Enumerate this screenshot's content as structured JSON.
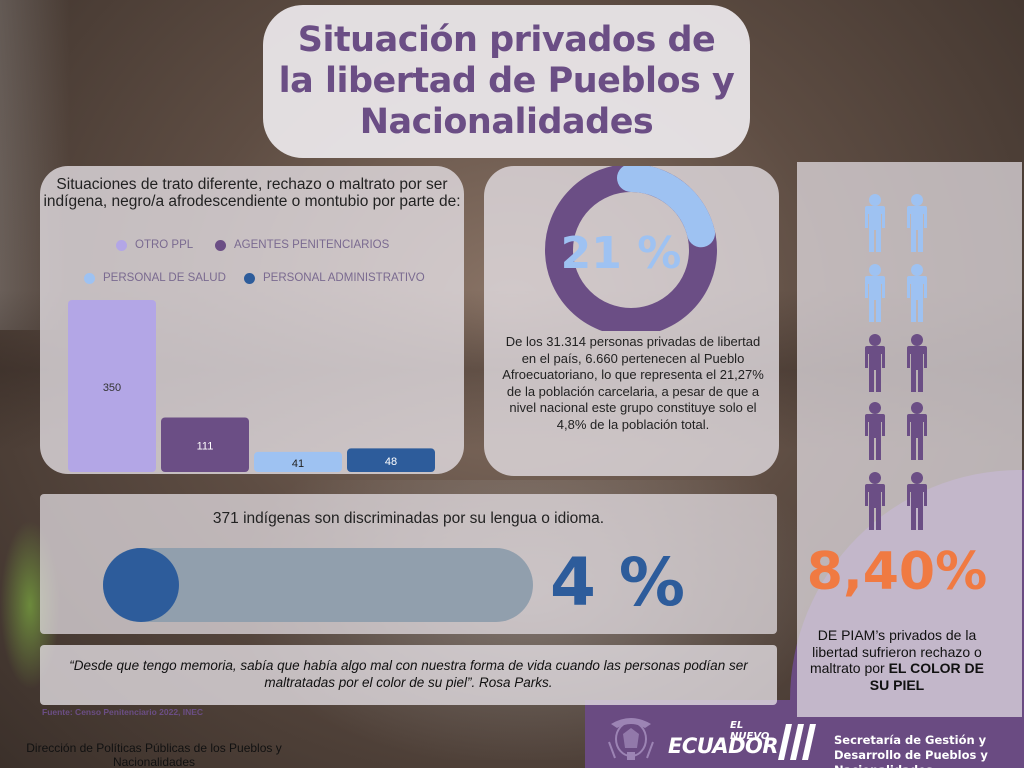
{
  "title": "Situación privados de la libertad de Pueblos y Nacionalidades",
  "chart_data": {
    "type": "bar",
    "title": "Situaciones de trato diferente, rechazo o maltrato por ser indígena, negro/a afrodescendiente o montubio por parte de:",
    "categories": [
      "OTRO PPL",
      "AGENTES PENITENCIARIOS",
      "PERSONAL DE SALUD",
      "PERSONAL ADMINISTRATIVO"
    ],
    "values": [
      350,
      111,
      41,
      48
    ],
    "colors": [
      "#b3a6e6",
      "#6b4e85",
      "#9ec2f2",
      "#2d5c9b"
    ],
    "legend_position": "top",
    "grid": false
  },
  "legend": {
    "otro_ppl": "OTRO PPL",
    "agentes": "AGENTES PENITENCIARIOS",
    "salud": "PERSONAL DE SALUD",
    "administrativo": "PERSONAL ADMINISTRATIVO"
  },
  "donut": {
    "percent_label": "21 %",
    "fraction": 0.2127,
    "text": "De los 31.314 personas privadas de libertad en el país, 6.660 pertenecen al Pueblo Afroecuatoriano, lo que representa el 21,27% de la población carcelaria, a pesar de que a nivel nacional este grupo constituye solo el 4,8% de la población total.",
    "colors": {
      "filled": "#9ec2f2",
      "rest": "#6b4e85"
    }
  },
  "people": {
    "total": 10,
    "highlighted": 4,
    "colors": {
      "highlight": "#9ec2f2",
      "base": "#6b4e85"
    },
    "percent_label": "8,40%",
    "text_normal": "DE PIAM’s privados de la libertad sufrieron rechazo o maltrato por ",
    "text_bold": "EL COLOR DE SU PIEL"
  },
  "language": {
    "heading": "371 indígenas son discriminadas por su lengua o idioma.",
    "percent_label": "4 %",
    "fraction": 0.04
  },
  "quote": "“Desde que tengo memoria, sabía que había algo mal con nuestra forma de vida cuando las personas podían ser maltratadas por el color de su piel”. Rosa Parks.",
  "source": "Fuente: Censo Penitenciario 2022, INEC",
  "footer": {
    "left": "Dirección de Políticas Públicas de los Pueblos y Nacionalidades",
    "logo_small": "EL NUEVO",
    "logo_big": "ECUADOR",
    "secretaria": "Secretaría de Gestión y Desarrollo de Pueblos y Nacionalidades"
  }
}
